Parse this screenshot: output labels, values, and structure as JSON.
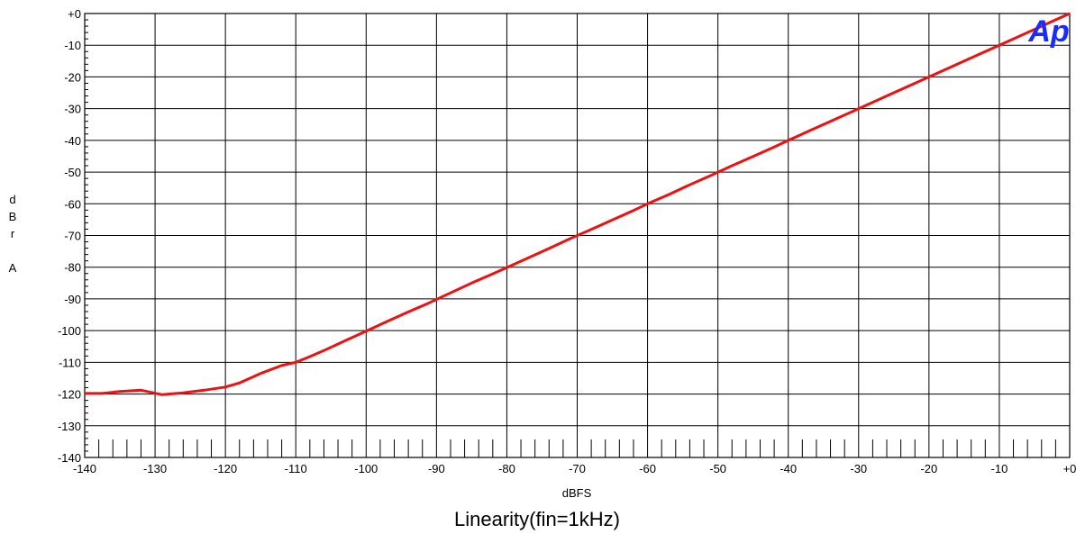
{
  "chart_data": {
    "type": "line",
    "title": "",
    "caption": "Linearity(fin=1kHz)",
    "xlabel": "dBFS",
    "ylabel_chars": [
      "d",
      "B",
      "r",
      "",
      "A"
    ],
    "xlim": [
      -140,
      0
    ],
    "ylim": [
      -140,
      0
    ],
    "x_ticks": [
      -140,
      -130,
      -120,
      -110,
      -100,
      -90,
      -80,
      -70,
      -60,
      -50,
      -40,
      -30,
      -20,
      -10,
      0
    ],
    "x_tick_labels": [
      "-140",
      "-130",
      "-120",
      "-110",
      "-100",
      "-90",
      "-80",
      "-70",
      "-60",
      "-50",
      "-40",
      "-30",
      "-20",
      "-10",
      "+0"
    ],
    "y_ticks": [
      0,
      -10,
      -20,
      -30,
      -40,
      -50,
      -60,
      -70,
      -80,
      -90,
      -100,
      -110,
      -120,
      -130,
      -140
    ],
    "y_tick_labels": [
      "+0",
      "-10",
      "-20",
      "-30",
      "-40",
      "-50",
      "-60",
      "-70",
      "-80",
      "-90",
      "-100",
      "-110",
      "-120",
      "-130",
      "-140"
    ],
    "grid": true,
    "logo_text": "Ap",
    "colors": {
      "line": "#ee1111",
      "grid": "#000000",
      "logo": "#1a2bff"
    },
    "series": [
      {
        "x": [
          -140,
          -137.5,
          -135,
          -132,
          -129,
          -126,
          -123,
          -120,
          -118,
          -115,
          -112,
          -110,
          -108,
          -106,
          -103,
          -100,
          -97,
          -94,
          -91,
          -88,
          -85,
          -82,
          -80,
          -77,
          -74,
          -71,
          -68,
          -65,
          -62,
          -60,
          -57,
          -54,
          -51,
          -48,
          -45,
          -42,
          -40,
          -37,
          -34,
          -31,
          -28,
          -25,
          -22,
          -20,
          -17,
          -14,
          -11,
          -8,
          -5,
          -2,
          0
        ],
        "y": [
          -119.8,
          -119.8,
          -119.2,
          -118.8,
          -120.2,
          -119.6,
          -118.8,
          -117.8,
          -116.5,
          -113.5,
          -111,
          -110,
          -108.2,
          -106.3,
          -103.2,
          -100.2,
          -97.1,
          -94.1,
          -91.2,
          -88.1,
          -85,
          -82.1,
          -80.1,
          -77.1,
          -74.1,
          -71,
          -68.1,
          -65.1,
          -62.1,
          -60,
          -57.1,
          -54,
          -51.1,
          -48,
          -45.1,
          -42.1,
          -40,
          -37,
          -34,
          -31,
          -28,
          -25,
          -22,
          -20,
          -17,
          -14,
          -11,
          -8,
          -5,
          -2,
          0
        ]
      }
    ]
  }
}
